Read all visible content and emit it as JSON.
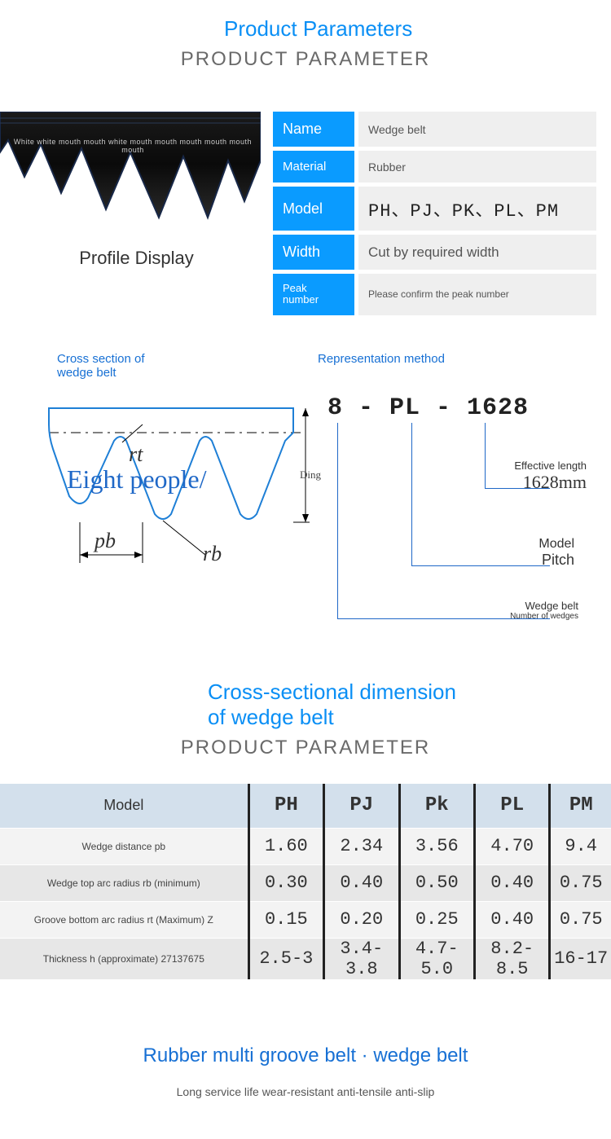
{
  "header1": {
    "blue": "Product Parameters",
    "gray": "PRODUCT PARAMETER"
  },
  "profile_label": "Profile Display",
  "belt_overlay_text": "White white mouth mouth white mouth mouth mouth mouth mouth mouth",
  "params": {
    "name_key": "Name",
    "name_val": "Wedge belt",
    "material_key": "Material",
    "material_val": "Rubber",
    "model_key": "Model",
    "model_val": "PH、PJ、PK、PL、PM",
    "width_key": "Width",
    "width_val": "Cut by required width",
    "peak_key": "Peak number",
    "peak_val": "Please confirm the peak number"
  },
  "diag": {
    "left_title": "Cross section of wedge belt",
    "right_title": "Representation method",
    "rt": "rt",
    "pb": "pb",
    "rb": "rb",
    "ding": "Ding",
    "eight": "Eight people/",
    "code": "8  -  PL - 1628",
    "eff_label": "Effective length",
    "eff_val": "1628mm",
    "model_label": "Model",
    "model_val": "Pitch",
    "wedge_label": "Wedge belt",
    "wedge_val": "Number of wedges"
  },
  "header2": {
    "blue": "Cross-sectional dimension of wedge belt",
    "gray": "PRODUCT PARAMETER"
  },
  "table": {
    "head": [
      "Model",
      "PH",
      "PJ",
      "Pk",
      "PL",
      "PM"
    ],
    "rows": [
      {
        "label": "Wedge distance pb",
        "v": [
          "1.60",
          "2.34",
          "3.56",
          "4.70",
          "9.4"
        ]
      },
      {
        "label": "Wedge top arc radius rb (minimum)",
        "v": [
          "0.30",
          "0.40",
          "0.50",
          "0.40",
          "0.75"
        ]
      },
      {
        "label": "Groove bottom arc radius rt  (Maximum) Z",
        "v": [
          "0.15",
          "0.20",
          "0.25",
          "0.40",
          "0.75"
        ]
      },
      {
        "label": "Thickness h (approximate) 27137675",
        "v": [
          "2.5-3",
          "3.4-3.8",
          "4.7-5.0",
          "8.2-8.5",
          "16-17"
        ]
      }
    ]
  },
  "footer": {
    "title": "Rubber multi groove belt · wedge belt",
    "sub": "Long service life wear-resistant anti-tensile anti-slip"
  },
  "colors": {
    "blue": "#0a9bff",
    "blue_text": "#1770d4",
    "cell_gray": "#efefef",
    "head_gray": "#d3e0ec"
  }
}
